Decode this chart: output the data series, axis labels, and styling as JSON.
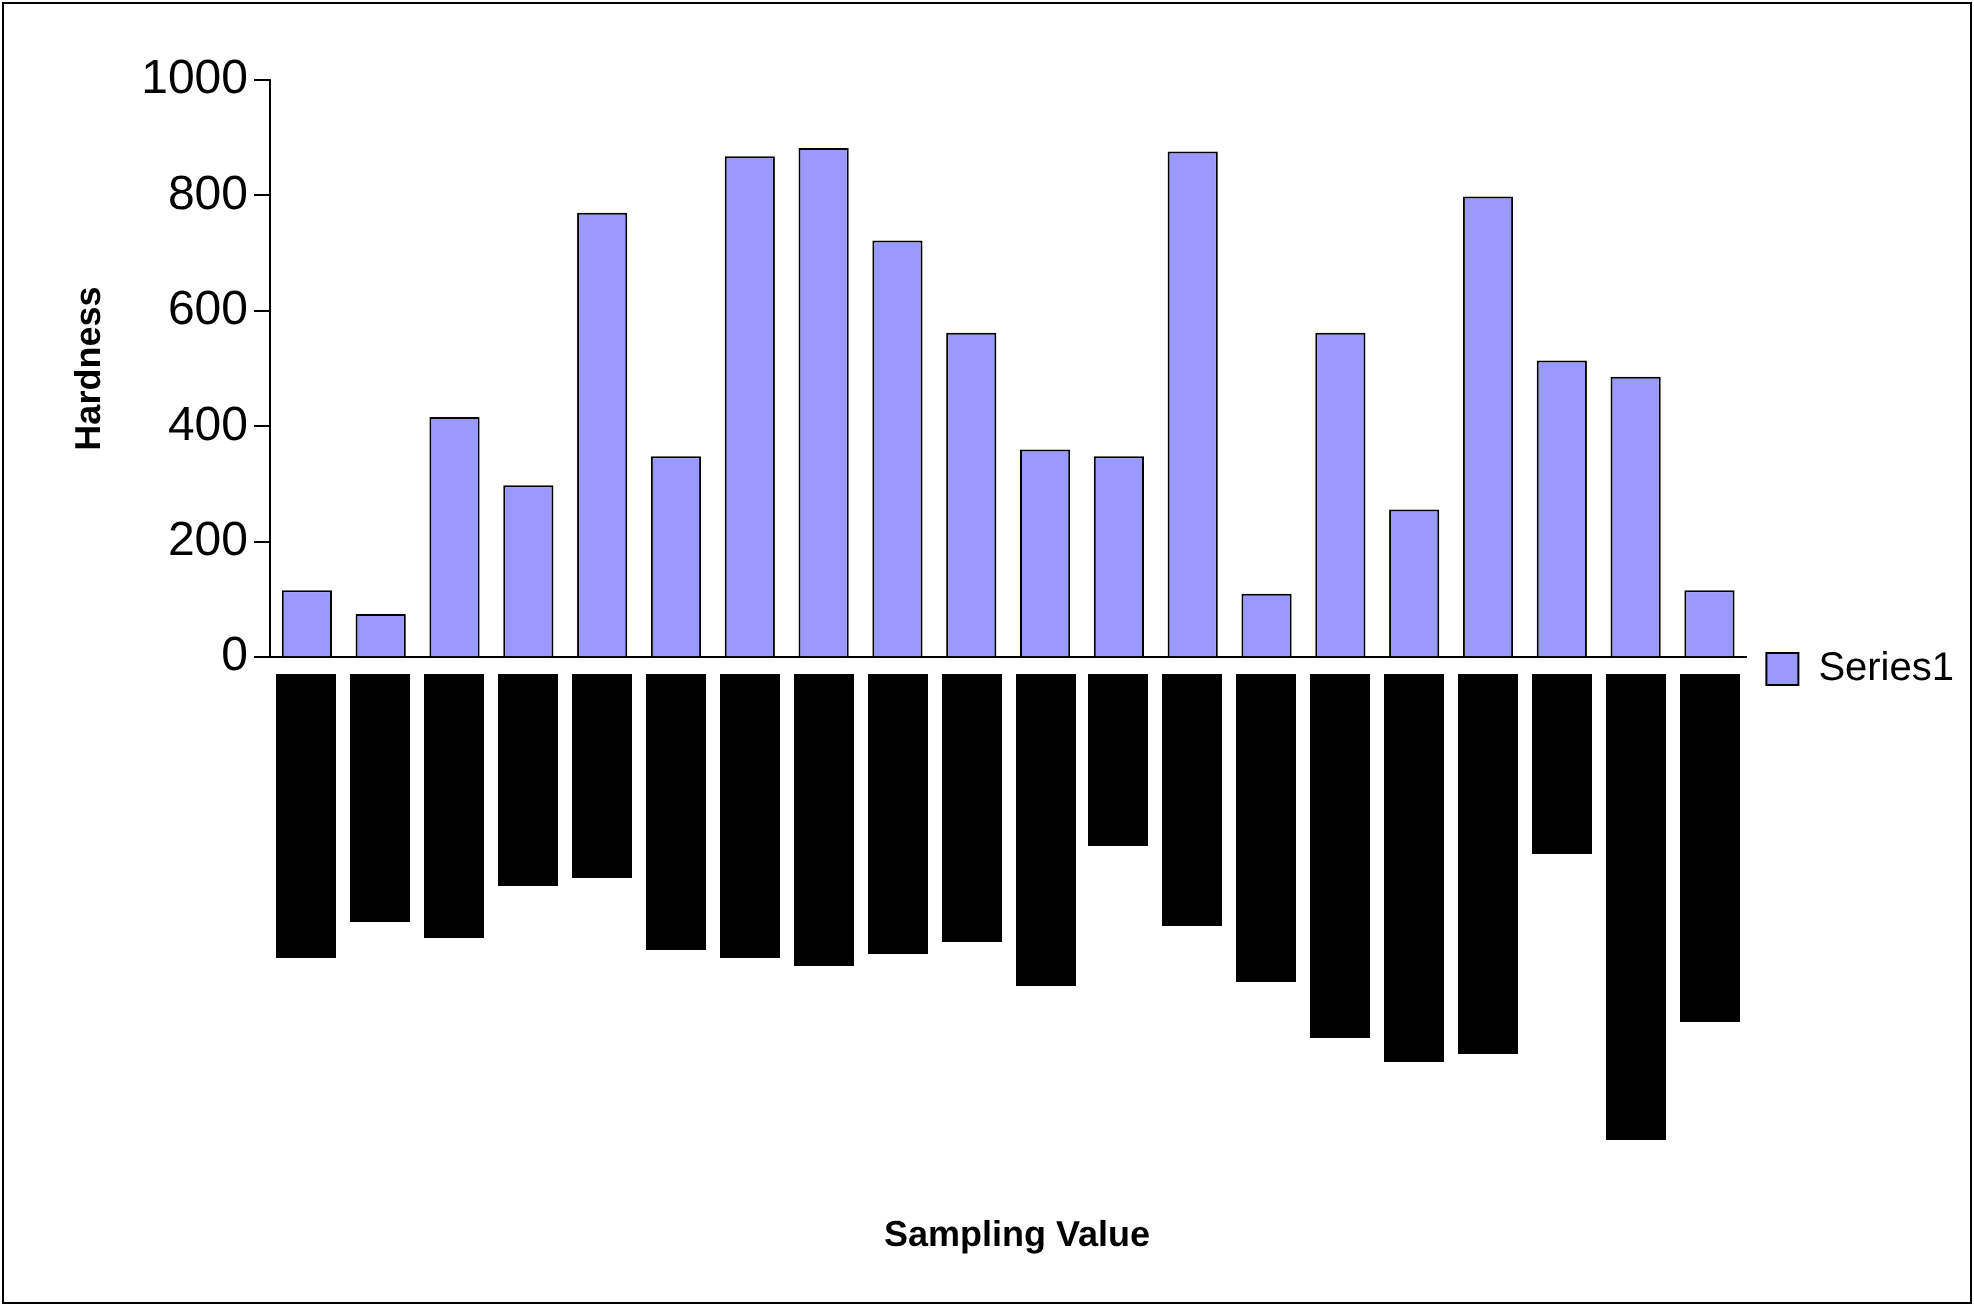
{
  "chart_data": {
    "type": "bar",
    "annotations": [
      "Sampling Value"
    ],
    "ylabel": "Hardness",
    "categories": [
      null,
      null,
      null,
      null,
      null,
      null,
      null,
      null,
      null,
      null,
      null,
      null,
      null,
      null,
      null,
      null,
      null,
      null,
      null,
      null
    ],
    "series": [
      {
        "name": "Series1",
        "color": "#9999ff",
        "values": [
          116,
          75,
          416,
          298,
          770,
          348,
          868,
          882,
          722,
          562,
          360,
          348,
          876,
          110,
          562,
          256,
          798,
          514,
          486,
          116
        ]
      }
    ],
    "ylim": [
      0,
      1000
    ],
    "yticks": [
      0,
      200,
      400,
      600,
      800,
      1000
    ],
    "grid": false,
    "legend": "right"
  }
}
